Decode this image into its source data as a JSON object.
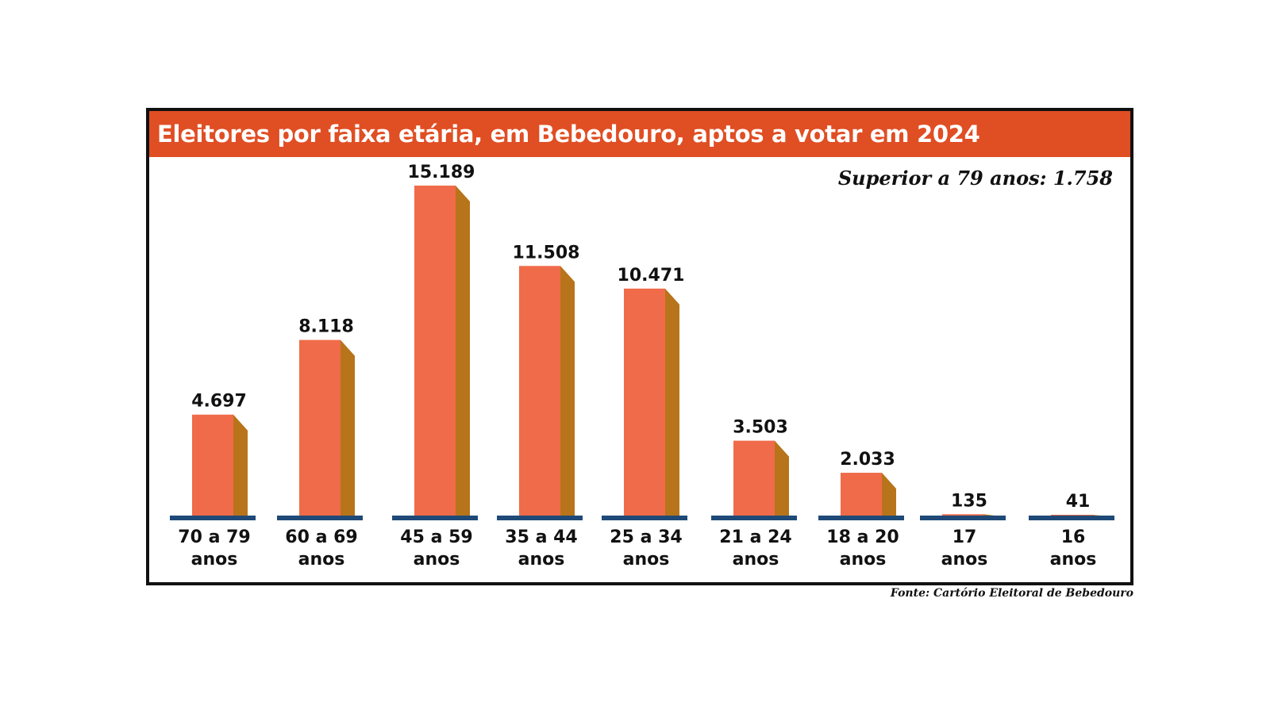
{
  "chart_data": {
    "type": "bar",
    "title": "Eleitores por faixa etária, em Bebedouro, aptos a votar em 2024",
    "annotation": "Superior a 79 anos: 1.758",
    "source": "Fonte: Cartório Eleitoral de Bebedouro",
    "categories": [
      [
        "70 a 79",
        "anos"
      ],
      [
        "60 a 69",
        "anos"
      ],
      [
        "45 a 59",
        "anos"
      ],
      [
        "35 a 44",
        "anos"
      ],
      [
        "25 a 34",
        "anos"
      ],
      [
        "21 a 24",
        "anos"
      ],
      [
        "18 a 20",
        "anos"
      ],
      [
        "17",
        "anos"
      ],
      [
        "16",
        "anos"
      ]
    ],
    "values": [
      4697,
      8118,
      15189,
      11508,
      10471,
      3503,
      2033,
      135,
      41
    ],
    "value_labels": [
      "4.697",
      "8.118",
      "15.189",
      "11.508",
      "10.471",
      "3.503",
      "2.033",
      "135",
      "41"
    ],
    "colors": {
      "bar_front": "#f06b49",
      "bar_side": "#b8741a",
      "baseline": "#1f4a78",
      "title_bg": "#e04e23"
    }
  }
}
